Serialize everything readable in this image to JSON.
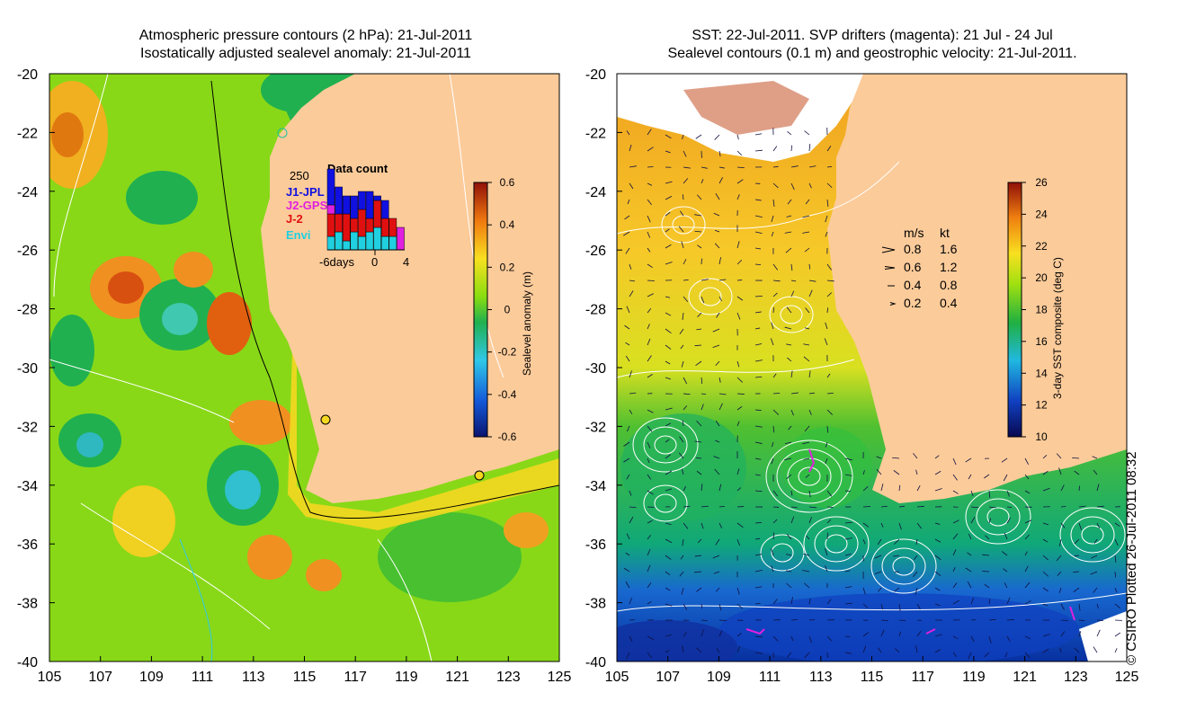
{
  "left_panel": {
    "title_line1": "Atmospheric pressure contours (2 hPa): 21-Jul-2011",
    "title_line2": "Isostatically adjusted sealevel anomaly: 21-Jul-2011",
    "colorbar": {
      "label": "Sealevel anomaly (m)",
      "ticks": [
        "0.6",
        "0.4",
        "0.2",
        "0",
        "-0.2",
        "-0.4",
        "-0.6"
      ],
      "range": [
        -0.6,
        0.6
      ]
    },
    "inset": {
      "title": "Data count",
      "ymax_label": "250",
      "xtick_labels": [
        "-6days",
        "0",
        "4"
      ],
      "legend": [
        {
          "label": "J1-JPL",
          "color": "#1010e0"
        },
        {
          "label": "J2-GPS",
          "color": "#e020e0"
        },
        {
          "label": "J-2",
          "color": "#e01010"
        },
        {
          "label": "Envi",
          "color": "#20d0e0"
        }
      ]
    }
  },
  "right_panel": {
    "title_line1": "SST: 22-Jul-2011. SVP drifters (magenta): 21 Jul - 24 Jul",
    "title_line2": "Sealevel contours (0.1 m) and geostrophic velocity: 21-Jul-2011.",
    "colorbar": {
      "label": "3-day SST composite (deg C)",
      "ticks": [
        "26",
        "24",
        "22",
        "20",
        "18",
        "16",
        "14",
        "12",
        "10"
      ],
      "range": [
        10,
        26
      ]
    },
    "velocity_key": {
      "header_ms": "m/s",
      "header_kt": "kt",
      "rows": [
        {
          "ms": "0.8",
          "kt": "1.6"
        },
        {
          "ms": "0.6",
          "kt": "1.2"
        },
        {
          "ms": "0.4",
          "kt": "0.8"
        },
        {
          "ms": "0.2",
          "kt": "0.4"
        }
      ]
    }
  },
  "axes": {
    "lon_ticks": [
      "105",
      "107",
      "109",
      "111",
      "113",
      "115",
      "117",
      "119",
      "121",
      "123",
      "125"
    ],
    "lat_ticks": [
      "-20",
      "-22",
      "-24",
      "-26",
      "-28",
      "-30",
      "-32",
      "-34",
      "-36",
      "-38",
      "-40"
    ]
  },
  "credit": "© CSIRO Plotted 26-Jul-2011 08:32",
  "colors": {
    "land": "#fccb9a",
    "contour": "#ffffff",
    "drifter": "#e020e0"
  }
}
